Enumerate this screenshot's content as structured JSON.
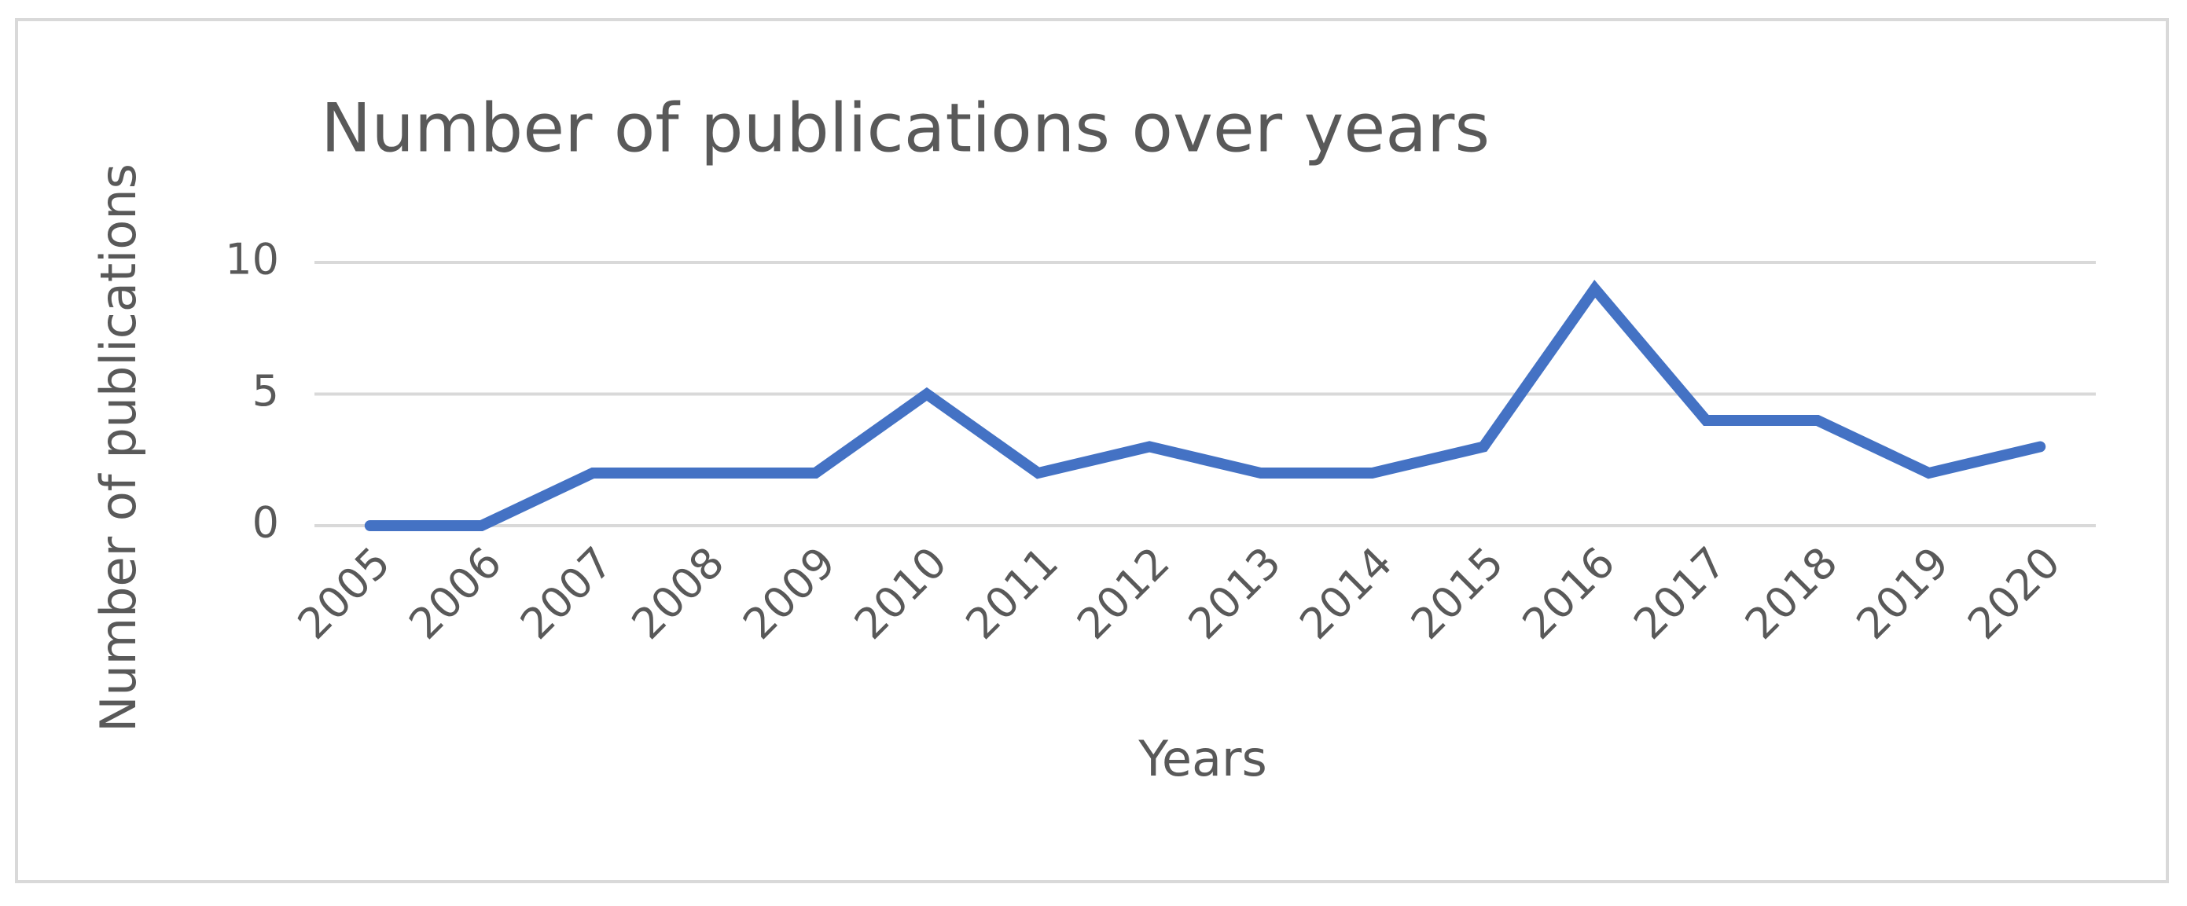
{
  "chart_data": {
    "type": "line",
    "title": "Number of publications over years",
    "x_label": "Years",
    "y_label": "Number of publications",
    "categories": [
      "2005",
      "2006",
      "2007",
      "2008",
      "2009",
      "2010",
      "2011",
      "2012",
      "2013",
      "2014",
      "2015",
      "2016",
      "2017",
      "2018",
      "2019",
      "2020"
    ],
    "values": [
      0,
      0,
      2,
      2,
      2,
      5,
      2,
      3,
      2,
      2,
      3,
      9,
      4,
      4,
      2,
      3
    ],
    "color": "#4472c4",
    "ylim": [
      0,
      10
    ],
    "yticks": [
      0,
      5,
      10
    ],
    "grid": true
  }
}
